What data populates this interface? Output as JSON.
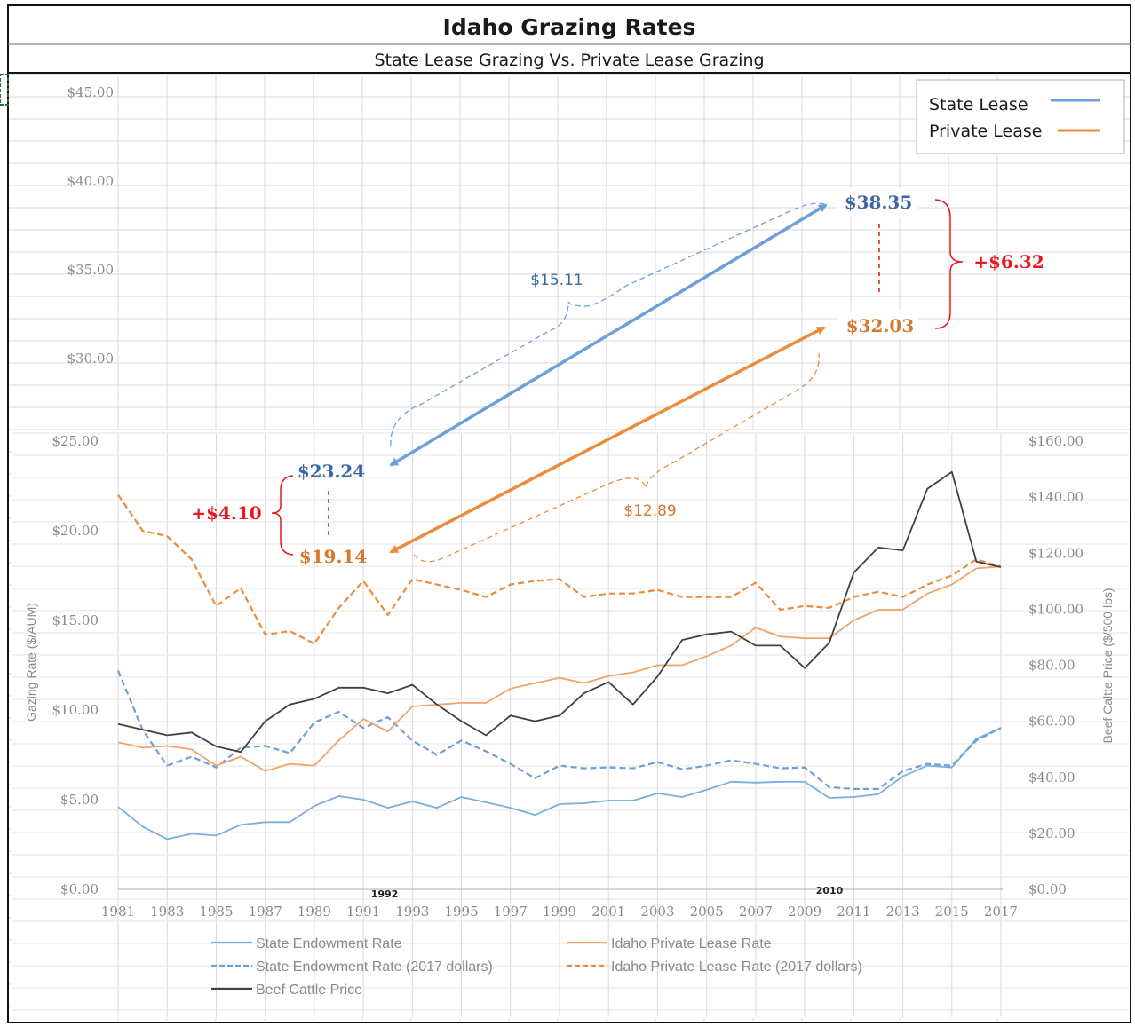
{
  "header": {
    "title": "Idaho Grazing Rates",
    "subtitle": "State Lease Grazing Vs. Private Lease Grazing"
  },
  "upper_legend": [
    {
      "label": "State Lease",
      "color": "#6f9fd8"
    },
    {
      "label": "Private Lease",
      "color": "#ed8b3c"
    }
  ],
  "upper_axis": {
    "ticks": [
      "$45.00",
      "$40.00",
      "$35.00",
      "$30.00"
    ],
    "values": [
      45,
      40,
      35,
      30
    ]
  },
  "annotations": {
    "state_1992": "$23.24",
    "private_1992": "$19.14",
    "diff_1992": "+$4.10",
    "state_2010": "$38.35",
    "private_2010": "$32.03",
    "diff_2010": "+$6.32",
    "state_change": "$15.11",
    "private_change": "$12.89",
    "year_a": "1992",
    "year_b": "2010"
  },
  "colors": {
    "state": "#6f9fd8",
    "private": "#ed8b3c",
    "beef": "#404040",
    "state_text": "#3e66a8",
    "private_text": "#d7782b",
    "diff": "#e8161e"
  },
  "chart_data": {
    "type": "line",
    "ylabel": "Gazing Rate ($/AUM)",
    "y2label": "Beef Caltte Price ($/500 lbs)",
    "ylim": [
      0,
      25
    ],
    "y2lim": [
      0,
      160
    ],
    "y_ticks": [
      "$0.00",
      "$5.00",
      "$10.00",
      "$15.00",
      "$20.00",
      "$25.00"
    ],
    "y2_ticks": [
      "$0.00",
      "$20.00",
      "$40.00",
      "$60.00",
      "$80.00",
      "$100.00",
      "$120.00",
      "$140.00",
      "$160.00"
    ],
    "x_ticks": [
      "1981",
      "1983",
      "1985",
      "1987",
      "1989",
      "1991",
      "1993",
      "1995",
      "1997",
      "1999",
      "2001",
      "2003",
      "2005",
      "2007",
      "2009",
      "2011",
      "2013",
      "2015",
      "2017"
    ],
    "x": [
      1981,
      1982,
      1983,
      1984,
      1985,
      1986,
      1987,
      1988,
      1989,
      1990,
      1991,
      1992,
      1993,
      1994,
      1995,
      1996,
      1997,
      1998,
      1999,
      2000,
      2001,
      2002,
      2003,
      2004,
      2005,
      2006,
      2007,
      2008,
      2009,
      2010,
      2011,
      2012,
      2013,
      2014,
      2015,
      2016,
      2017
    ],
    "series": [
      {
        "name": "State Endowment Rate",
        "axis": "left",
        "color": "#7aaee0",
        "dash": false,
        "values": [
          4.6,
          3.5,
          2.8,
          3.1,
          3.0,
          3.6,
          3.75,
          3.75,
          4.65,
          5.2,
          5.0,
          4.55,
          4.9,
          4.55,
          5.15,
          4.85,
          4.55,
          4.15,
          4.75,
          4.8,
          4.95,
          4.95,
          5.35,
          5.15,
          5.55,
          6.0,
          5.95,
          6.0,
          6.0,
          5.1,
          5.15,
          5.3,
          6.3,
          6.9,
          6.8,
          8.4,
          9.0
        ]
      },
      {
        "name": "State Endowment Rate (2017 dollars)",
        "axis": "left",
        "color": "#6f9fd8",
        "dash": true,
        "values": [
          12.2,
          8.9,
          6.9,
          7.4,
          6.8,
          7.9,
          8.0,
          7.6,
          9.3,
          9.9,
          9.0,
          9.6,
          8.3,
          7.5,
          8.3,
          7.7,
          7.0,
          6.2,
          6.9,
          6.75,
          6.8,
          6.75,
          7.1,
          6.7,
          6.9,
          7.2,
          7.0,
          6.75,
          6.8,
          5.7,
          5.6,
          5.6,
          6.6,
          7.0,
          6.9,
          8.3,
          9.0
        ]
      },
      {
        "name": "Idaho Private Lease Rate",
        "axis": "left",
        "color": "#f1a46a",
        "dash": false,
        "values": [
          8.2,
          7.9,
          8.0,
          7.8,
          6.9,
          7.4,
          6.6,
          7.0,
          6.9,
          8.3,
          9.5,
          8.8,
          10.2,
          10.3,
          10.4,
          10.4,
          11.2,
          11.5,
          11.8,
          11.5,
          11.9,
          12.1,
          12.5,
          12.5,
          13.0,
          13.6,
          14.6,
          14.1,
          14.0,
          14.0,
          15.0,
          15.6,
          15.6,
          16.5,
          17.0,
          17.9,
          18.0
        ]
      },
      {
        "name": "Idaho Private Lease Rate (2017 dollars)",
        "axis": "left",
        "color": "#ed8b3c",
        "dash": true,
        "values": [
          22.0,
          20.0,
          19.7,
          18.4,
          15.8,
          16.8,
          14.2,
          14.4,
          13.7,
          15.7,
          17.2,
          15.3,
          17.3,
          17.0,
          16.7,
          16.3,
          17.0,
          17.2,
          17.3,
          16.3,
          16.5,
          16.5,
          16.7,
          16.3,
          16.3,
          16.3,
          17.1,
          15.6,
          15.8,
          15.7,
          16.3,
          16.6,
          16.3,
          17.0,
          17.5,
          18.4,
          18.0
        ]
      },
      {
        "name": "Beef Cattle Price",
        "axis": "right",
        "color": "#404040",
        "dash": false,
        "values": [
          59,
          57,
          55,
          56,
          51,
          49,
          60,
          66,
          68,
          72,
          72,
          70,
          73,
          66,
          60,
          55,
          62,
          60,
          62,
          70,
          74,
          66,
          76,
          89,
          91,
          92,
          87,
          87,
          79,
          88,
          113,
          122,
          121,
          143,
          149,
          117,
          115
        ]
      }
    ]
  }
}
